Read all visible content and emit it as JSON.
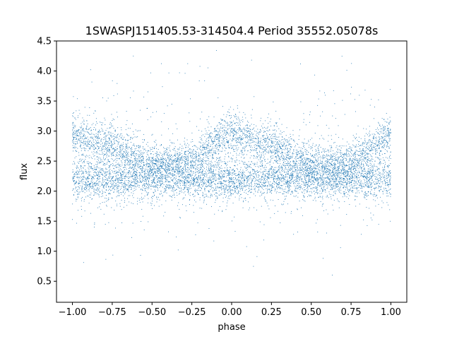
{
  "chart_data": {
    "type": "scatter",
    "title": "1SWASPJ151405.53-314504.4 Period 35552.05078s",
    "xlabel": "phase",
    "ylabel": "flux",
    "xlim": [
      -1.1,
      1.1
    ],
    "ylim": [
      0.15,
      4.5
    ],
    "xticks": [
      -1.0,
      -0.75,
      -0.5,
      -0.25,
      0.0,
      0.25,
      0.5,
      0.75,
      1.0
    ],
    "xtick_labels": [
      "−1.00",
      "−0.75",
      "−0.50",
      "−0.25",
      "0.00",
      "0.25",
      "0.50",
      "0.75",
      "1.00"
    ],
    "yticks": [
      0.5,
      1.0,
      1.5,
      2.0,
      2.5,
      3.0,
      3.5,
      4.0,
      4.5
    ],
    "ytick_labels": [
      "0.5",
      "1.0",
      "1.5",
      "2.0",
      "2.5",
      "3.0",
      "3.5",
      "4.0",
      "4.5"
    ],
    "grid": false,
    "marker_color": "#1f77b4",
    "baseline_flux": 2.2,
    "upper_branch": {
      "phase": [
        -1.0,
        -0.75,
        -0.5,
        -0.25,
        0.0,
        0.25,
        0.5,
        0.75,
        1.0
      ],
      "flux": [
        2.95,
        2.75,
        2.45,
        2.5,
        3.0,
        2.75,
        2.45,
        2.5,
        2.95
      ]
    }
  }
}
